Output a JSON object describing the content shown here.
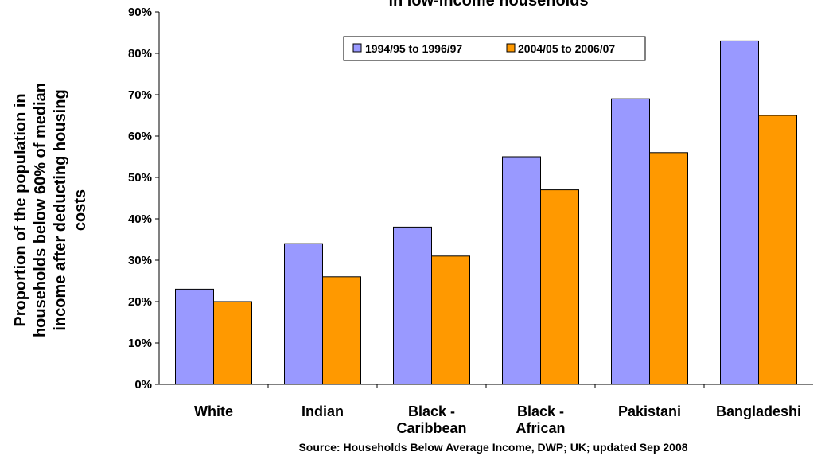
{
  "chart_data": {
    "type": "bar",
    "title": "in low-income households",
    "ylabel": [
      "Proportion of the population in",
      "households below 60% of median",
      "income after deducting housing",
      "costs"
    ],
    "xlabel": "",
    "ylim": [
      0,
      90
    ],
    "yticks": [
      "0%",
      "10%",
      "20%",
      "30%",
      "40%",
      "50%",
      "60%",
      "70%",
      "80%",
      "90%"
    ],
    "categories": [
      [
        "White"
      ],
      [
        "Indian"
      ],
      [
        "Black -",
        "Caribbean"
      ],
      [
        "Black -",
        "African"
      ],
      [
        "Pakistani"
      ],
      [
        "Bangladeshi"
      ]
    ],
    "series": [
      {
        "name": "1994/95 to 1996/97",
        "values": [
          23,
          34,
          38,
          55,
          69,
          83
        ]
      },
      {
        "name": "2004/05 to 2006/07",
        "values": [
          20,
          26,
          31,
          47,
          56,
          65
        ]
      }
    ],
    "colors": [
      "#9999ff",
      "#ff9900"
    ],
    "legend_position": "top-center",
    "grid": false,
    "source": "Source: Households Below Average Income, DWP; UK; updated Sep 2008"
  }
}
